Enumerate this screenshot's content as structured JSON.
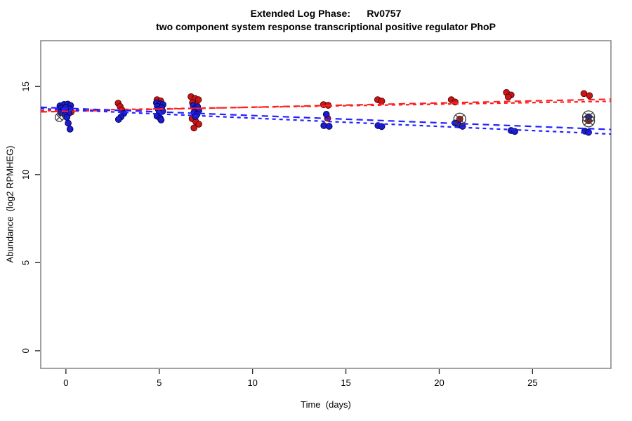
{
  "chart_data": {
    "type": "scatter",
    "title": "Extended Log Phase:      Rv0757",
    "subtitle": "two component system response transcriptional positive regulator PhoP",
    "xlabel": "Time  (days)",
    "ylabel": "Abundance  (log2 RPMHEG)",
    "xlim": [
      -1.35,
      29.2
    ],
    "ylim": [
      -1.0,
      17.6
    ],
    "xticks": [
      0,
      5,
      10,
      15,
      20,
      25
    ],
    "yticks": [
      0,
      5,
      10,
      15
    ],
    "grid": false,
    "legend": "none",
    "colors": {
      "red_fill": "#c81616",
      "red_edge": "#550000",
      "blue_fill": "#1c1ccc",
      "blue_edge": "#000050",
      "red_line": "#ff2020",
      "blue_line": "#2222ff",
      "outlier_marker": "#3a3a3a",
      "box": "#8a8a8a",
      "tick": "#222222"
    },
    "series": [
      {
        "name": "red",
        "points": [
          [
            0.15,
            13.62
          ],
          [
            0.28,
            13.55
          ],
          [
            2.8,
            14.05
          ],
          [
            2.9,
            13.87
          ],
          [
            3.0,
            13.67
          ],
          [
            4.88,
            14.25
          ],
          [
            5.08,
            14.18
          ],
          [
            4.98,
            13.67
          ],
          [
            6.7,
            14.42
          ],
          [
            6.92,
            14.32
          ],
          [
            7.1,
            14.25
          ],
          [
            6.78,
            14.08
          ],
          [
            7.0,
            13.97
          ],
          [
            6.76,
            13.17
          ],
          [
            6.96,
            13.0
          ],
          [
            7.12,
            12.86
          ],
          [
            6.86,
            12.65
          ],
          [
            13.8,
            13.97
          ],
          [
            14.05,
            13.93
          ],
          [
            14.02,
            13.2
          ],
          [
            16.7,
            14.25
          ],
          [
            16.92,
            14.17
          ],
          [
            20.65,
            14.25
          ],
          [
            20.85,
            14.12
          ],
          [
            21.1,
            13.15
          ],
          [
            23.6,
            14.66
          ],
          [
            23.85,
            14.52
          ],
          [
            23.7,
            14.4
          ],
          [
            27.75,
            14.6
          ],
          [
            28.05,
            14.48
          ],
          [
            28.0,
            13.05
          ]
        ]
      },
      {
        "name": "blue",
        "points": [
          [
            -0.32,
            13.9
          ],
          [
            -0.1,
            13.98
          ],
          [
            0.1,
            14.0
          ],
          [
            0.25,
            13.92
          ],
          [
            -0.25,
            13.78
          ],
          [
            0.0,
            13.82
          ],
          [
            0.22,
            13.72
          ],
          [
            -0.15,
            13.65
          ],
          [
            0.08,
            13.58
          ],
          [
            -0.28,
            13.52
          ],
          [
            0.15,
            13.48
          ],
          [
            -0.05,
            13.38
          ],
          [
            0.05,
            13.25
          ],
          [
            0.12,
            12.92
          ],
          [
            0.22,
            12.58
          ],
          [
            3.1,
            13.47
          ],
          [
            2.95,
            13.28
          ],
          [
            2.82,
            13.13
          ],
          [
            4.85,
            14.07
          ],
          [
            5.05,
            14.02
          ],
          [
            5.2,
            13.97
          ],
          [
            4.9,
            13.87
          ],
          [
            5.12,
            13.8
          ],
          [
            4.95,
            13.7
          ],
          [
            5.18,
            13.6
          ],
          [
            5.0,
            13.5
          ],
          [
            4.88,
            13.32
          ],
          [
            5.05,
            13.2
          ],
          [
            5.1,
            13.1
          ],
          [
            6.82,
            13.92
          ],
          [
            7.05,
            13.85
          ],
          [
            6.9,
            13.72
          ],
          [
            7.12,
            13.63
          ],
          [
            6.86,
            13.52
          ],
          [
            7.02,
            13.42
          ],
          [
            6.94,
            13.3
          ],
          [
            13.95,
            13.42
          ],
          [
            13.82,
            12.78
          ],
          [
            14.1,
            12.74
          ],
          [
            16.72,
            12.78
          ],
          [
            16.92,
            12.73
          ],
          [
            20.85,
            12.93
          ],
          [
            21.05,
            12.82
          ],
          [
            21.25,
            12.74
          ],
          [
            23.85,
            12.5
          ],
          [
            24.05,
            12.45
          ],
          [
            28.0,
            13.28
          ],
          [
            27.8,
            12.47
          ],
          [
            28.0,
            12.4
          ]
        ]
      }
    ],
    "trend_lines": [
      {
        "name": "red-fit-a",
        "color": "red",
        "dash": "9,6",
        "x": [
          -1.35,
          29.2
        ],
        "y": [
          13.56,
          14.28
        ]
      },
      {
        "name": "red-fit-b",
        "color": "red",
        "dash": "5,5",
        "x": [
          -1.35,
          29.2
        ],
        "y": [
          13.62,
          14.16
        ]
      },
      {
        "name": "blue-fit-a",
        "color": "blue",
        "dash": "9,6",
        "x": [
          -1.35,
          29.2
        ],
        "y": [
          13.82,
          12.56
        ]
      },
      {
        "name": "blue-fit-b",
        "color": "blue",
        "dash": "5,5",
        "x": [
          -1.35,
          29.2
        ],
        "y": [
          13.74,
          12.3
        ]
      }
    ],
    "outliers_marked": [
      {
        "day": -0.35,
        "value": 13.25,
        "r": 6
      },
      {
        "day": 21.1,
        "value": 13.15,
        "r": 8.5
      },
      {
        "day": 28.0,
        "value": 13.28,
        "r": 8.5
      },
      {
        "day": 28.0,
        "value": 13.05,
        "r": 8.5
      }
    ]
  }
}
